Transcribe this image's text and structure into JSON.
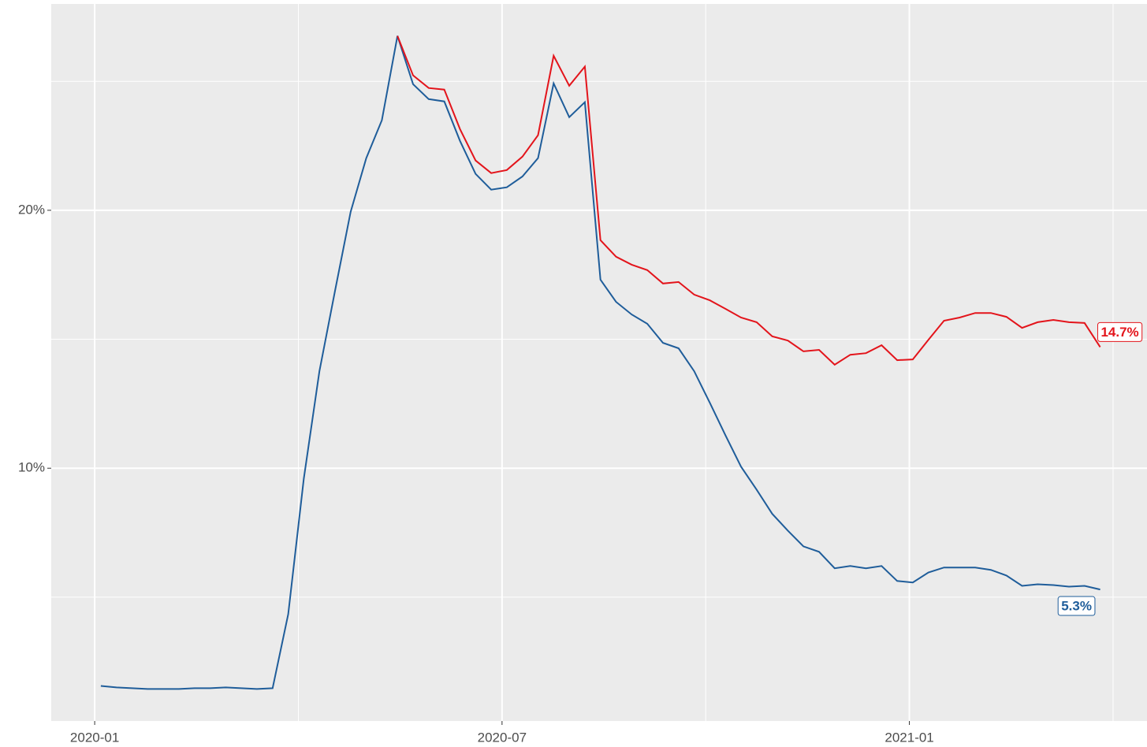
{
  "chart_data": {
    "type": "line",
    "x": [
      0.09,
      0.32,
      0.55,
      0.78,
      1.01,
      1.24,
      1.47,
      1.7,
      1.93,
      2.16,
      2.39,
      2.62,
      2.85,
      3.08,
      3.31,
      3.54,
      3.77,
      4.0,
      4.23,
      4.46,
      4.69,
      4.92,
      5.15,
      5.38,
      5.61,
      5.84,
      6.07,
      6.3,
      6.53,
      6.76,
      6.99,
      7.22,
      7.45,
      7.68,
      7.91,
      8.14,
      8.37,
      8.6,
      8.83,
      9.06,
      9.29,
      9.52,
      9.75,
      9.98,
      10.21,
      10.44,
      10.67,
      10.9,
      11.13,
      11.36,
      11.59,
      11.82,
      12.05,
      12.28,
      12.51,
      12.74,
      12.97,
      13.2,
      13.43,
      13.66,
      13.89,
      14.12,
      14.35,
      14.58,
      14.81
    ],
    "series": [
      {
        "color": "#1f5d9a",
        "values": [
          1.56,
          1.5,
          1.47,
          1.44,
          1.44,
          1.44,
          1.47,
          1.47,
          1.5,
          1.47,
          1.44,
          1.47,
          4.34,
          9.6,
          13.76,
          16.88,
          19.94,
          22.02,
          23.49,
          26.76,
          24.89,
          24.31,
          24.22,
          22.69,
          21.41,
          20.8,
          20.89,
          21.31,
          22.02,
          24.92,
          23.61,
          24.19,
          17.31,
          16.45,
          15.96,
          15.6,
          14.86,
          14.65,
          13.76,
          12.54,
          11.28,
          10.06,
          9.17,
          8.23,
          7.58,
          6.97,
          6.76,
          6.12,
          6.21,
          6.12,
          6.21,
          5.63,
          5.57,
          5.96,
          6.15,
          6.15,
          6.15,
          6.06,
          5.84,
          5.44,
          5.5,
          5.47,
          5.41,
          5.44,
          5.3
        ],
        "value_labels": [
          null,
          null,
          null,
          null,
          null,
          null,
          null,
          null,
          null,
          null,
          null,
          null,
          null,
          null,
          null,
          null,
          null,
          null,
          null,
          null,
          null,
          null,
          null,
          null,
          null,
          null,
          null,
          null,
          null,
          null,
          null,
          null,
          null,
          null,
          null,
          null,
          null,
          null,
          null,
          null,
          null,
          null,
          null,
          null,
          null,
          null,
          null,
          null,
          null,
          null,
          null,
          null,
          null,
          null,
          null,
          null,
          null,
          null,
          null,
          null,
          null,
          null,
          null,
          null,
          "5.3%"
        ]
      },
      {
        "color": "#e3141b",
        "values": [
          null,
          null,
          null,
          null,
          null,
          null,
          null,
          null,
          null,
          null,
          null,
          null,
          null,
          null,
          null,
          null,
          null,
          null,
          null,
          26.76,
          25.23,
          24.74,
          24.68,
          23.15,
          21.93,
          21.44,
          21.56,
          22.08,
          22.91,
          25.99,
          24.83,
          25.57,
          18.84,
          18.2,
          17.89,
          17.68,
          17.16,
          17.22,
          16.73,
          16.51,
          16.18,
          15.84,
          15.66,
          15.11,
          14.95,
          14.53,
          14.59,
          14.01,
          14.4,
          14.46,
          14.77,
          14.19,
          14.22,
          14.98,
          15.72,
          15.84,
          16.02,
          16.02,
          15.87,
          15.44,
          15.66,
          15.75,
          15.66,
          15.63,
          14.7
        ],
        "value_labels": [
          null,
          null,
          null,
          null,
          null,
          null,
          null,
          null,
          null,
          null,
          null,
          null,
          null,
          null,
          null,
          null,
          null,
          null,
          null,
          null,
          null,
          null,
          null,
          null,
          null,
          null,
          null,
          null,
          null,
          null,
          null,
          null,
          null,
          null,
          null,
          null,
          null,
          null,
          null,
          null,
          null,
          null,
          null,
          null,
          null,
          null,
          null,
          null,
          null,
          null,
          null,
          null,
          null,
          null,
          null,
          null,
          null,
          null,
          null,
          null,
          null,
          null,
          null,
          null,
          "14.7%"
        ]
      }
    ],
    "xlim": [
      -0.64,
      15.5
    ],
    "xticks": [
      {
        "value": 0,
        "label": "2020-01"
      },
      {
        "value": 6,
        "label": "2020-07"
      },
      {
        "value": 12,
        "label": "2021-01"
      }
    ],
    "xminorticks": [
      3,
      9,
      15
    ],
    "ylim": [
      0.2,
      28.0
    ],
    "yticks": [
      {
        "value": 10,
        "label": "10%"
      },
      {
        "value": 20,
        "label": "20%"
      }
    ],
    "yminorticks": [
      5,
      15,
      25
    ],
    "grid": true
  }
}
